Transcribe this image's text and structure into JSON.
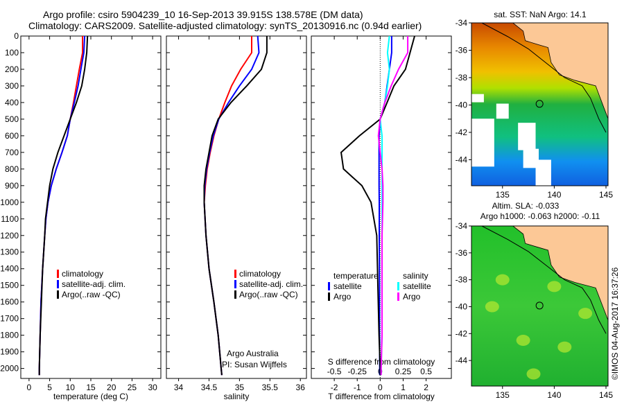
{
  "title_line1": "Argo profile: csiro 5904239_10 16-Sep-2013 39.915S 138.578E (DM data)",
  "title_line2": "Climatology: CARS2009. Satellite-adjusted climatology: synTS_20130916.nc (0.94d earlier)",
  "credit": "©IMOS 04-Aug-2017 16:37:26",
  "colors": {
    "climatology": "#ff0000",
    "satellite": "#0000ff",
    "argo": "#000000",
    "s_satellite": "#00ffff",
    "s_argo": "#ff00ff",
    "land": "#fcc896"
  },
  "chart_data": [
    {
      "type": "line",
      "name": "temperature-profile",
      "xlabel": "temperature (deg C)",
      "ylabel": "depth",
      "xlim": [
        -2,
        32
      ],
      "ylim": [
        2060,
        0
      ],
      "xticks": [
        0,
        5,
        10,
        15,
        20,
        25,
        30
      ],
      "yticks": [
        0,
        100,
        200,
        300,
        400,
        500,
        600,
        700,
        800,
        900,
        1000,
        1100,
        1200,
        1300,
        1400,
        1500,
        1600,
        1700,
        1800,
        1900,
        2000
      ],
      "legend": [
        "climatology",
        "satellite-adj. clim.",
        "Argo(..raw -QC)"
      ],
      "depth": [
        0,
        100,
        200,
        300,
        400,
        500,
        600,
        700,
        800,
        900,
        1000,
        1100,
        1200,
        1400,
        1600,
        1800,
        2000,
        2040
      ],
      "series": [
        {
          "name": "climatology",
          "color_key": "climatology",
          "values": [
            13,
            13,
            12.2,
            11.5,
            10.8,
            10,
            9.3,
            8,
            6.6,
            5.4,
            4.6,
            4.1,
            3.8,
            3.3,
            2.9,
            2.7,
            2.5,
            2.5
          ]
        },
        {
          "name": "satellite-adj. clim.",
          "color_key": "satellite",
          "values": [
            13.5,
            13.3,
            12.6,
            11.9,
            11,
            10,
            9.3,
            8,
            6.6,
            5.4,
            4.6,
            4.1,
            3.8,
            3.3,
            2.9,
            2.7,
            2.5,
            2.5
          ]
        },
        {
          "name": "Argo(..raw -QC)",
          "color_key": "argo",
          "values": [
            14.2,
            14,
            13.5,
            12.8,
            11.5,
            10,
            8.5,
            7,
            5.8,
            5,
            4.5,
            4,
            3.8,
            3.3,
            3,
            2.7,
            2.5,
            2.5
          ]
        }
      ]
    },
    {
      "type": "line",
      "name": "salinity-profile",
      "xlabel": "salinity",
      "xlim": [
        33.8,
        36.1
      ],
      "ylim": [
        2060,
        0
      ],
      "xticks": [
        34,
        34.5,
        35,
        35.5,
        36
      ],
      "legend": [
        "climatology",
        "satellite-adj. clim.",
        "Argo(..raw -QC)"
      ],
      "annotation": [
        "Argo Australia",
        "PI: Susan Wijffels"
      ],
      "depth": [
        0,
        100,
        200,
        300,
        400,
        500,
        600,
        700,
        800,
        900,
        1000,
        1200,
        1400,
        1600,
        1800,
        2000,
        2040
      ],
      "series": [
        {
          "name": "climatology",
          "color_key": "climatology",
          "values": [
            35.2,
            35.2,
            35.02,
            34.87,
            34.76,
            34.66,
            34.58,
            34.52,
            34.47,
            34.44,
            34.42,
            34.45,
            34.5,
            34.58,
            34.65,
            34.7,
            34.71
          ]
        },
        {
          "name": "satellite-adj. clim.",
          "color_key": "satellite",
          "values": [
            35.3,
            35.32,
            35.2,
            35.0,
            34.82,
            34.66,
            34.57,
            34.51,
            34.46,
            34.43,
            34.42,
            34.45,
            34.5,
            34.58,
            34.65,
            34.7,
            34.71
          ]
        },
        {
          "name": "Argo(..raw -QC)",
          "color_key": "argo",
          "values": [
            35.45,
            35.45,
            35.36,
            35.12,
            34.86,
            34.65,
            34.55,
            34.5,
            34.45,
            34.42,
            34.42,
            34.45,
            34.5,
            34.58,
            34.65,
            34.7,
            34.71
          ]
        }
      ]
    },
    {
      "type": "line",
      "name": "difference-profile",
      "xlabel": "T difference from climatology",
      "x2label": "S difference from climatology",
      "xlim": [
        -3,
        3.1
      ],
      "ylim": [
        2060,
        0
      ],
      "xticks": [
        -2,
        -1,
        0,
        1,
        2
      ],
      "x2ticks": [
        "-0.5",
        "-0.25",
        "0",
        "0.25",
        "0.5"
      ],
      "x2tick_values": [
        -0.5,
        -0.25,
        0,
        0.25,
        0.5
      ],
      "legend": {
        "temperature": "temperature",
        "salinity": "salinity",
        "satellite": "satellite",
        "argo": "Argo"
      },
      "depth": [
        0,
        100,
        200,
        300,
        400,
        500,
        600,
        700,
        800,
        900,
        1000,
        1200,
        1500,
        1800,
        2000,
        2040
      ],
      "series": [
        {
          "name": "T satellite",
          "color_key": "satellite",
          "axis": "T",
          "values": [
            0.5,
            0.5,
            0.4,
            0.3,
            0.2,
            0,
            -0.05,
            -0.05,
            -0.05,
            -0.05,
            -0.04,
            -0.04,
            -0.03,
            -0.03,
            -0.02,
            -0.02
          ]
        },
        {
          "name": "T Argo",
          "color_key": "argo",
          "axis": "T",
          "values": [
            1.5,
            1.3,
            1.1,
            0.6,
            0.3,
            0,
            -0.9,
            -1.7,
            -1.6,
            -0.8,
            -0.4,
            -0.15,
            -0.1,
            -0.05,
            0,
            0
          ]
        },
        {
          "name": "S satellite",
          "color_key": "s_satellite",
          "axis": "S",
          "values": [
            0.1,
            0.08,
            0.1,
            0.08,
            0.05,
            0,
            0.02,
            0.02,
            0.02,
            0.02,
            0.02,
            0.02,
            0.02,
            0.02,
            0.01,
            0.01
          ]
        },
        {
          "name": "S Argo",
          "color_key": "s_argo",
          "axis": "S",
          "values": [
            0.3,
            0.3,
            0.2,
            0.12,
            0.05,
            0,
            -0.02,
            0,
            0.02,
            0.03,
            0.03,
            0.02,
            0.02,
            0.02,
            0.01,
            0.01
          ]
        }
      ]
    }
  ],
  "maps": [
    {
      "title": "sat. SST: NaN Argo: 14.1",
      "lon_ticks": [
        "135",
        "140",
        "145"
      ],
      "lat_ticks": [
        "-34",
        "-36",
        "-38",
        "-40",
        "-42",
        "-44"
      ]
    },
    {
      "title_line1": "Altim. SLA: -0.033",
      "title_line2": "Argo h1000: -0.063 h2000: -0.11",
      "lon_ticks": [
        "135",
        "140",
        "145"
      ],
      "lat_ticks": [
        "-34",
        "-36",
        "-38",
        "-40",
        "-42",
        "-44"
      ]
    }
  ],
  "profile_location": {
    "lon": 138.578,
    "lat": -39.915
  }
}
